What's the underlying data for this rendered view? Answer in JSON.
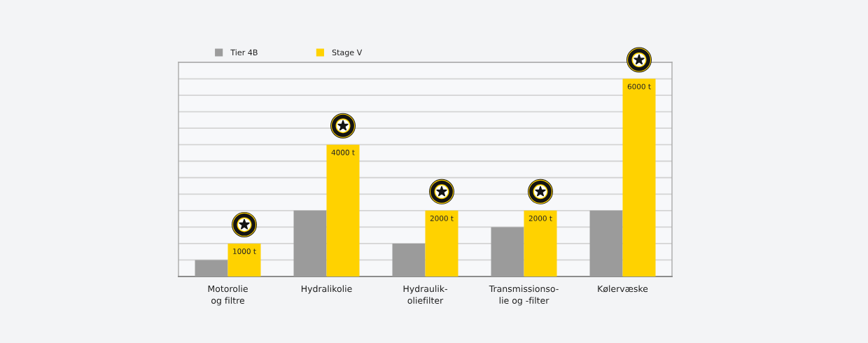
{
  "chart_data": {
    "type": "bar",
    "categories": [
      "Motorolie\nog filtre",
      "Hydralikolie",
      "Hydraulik-\noliefilter",
      "Transmissionso-\nlie og -filter",
      "Kølervæske"
    ],
    "series": [
      {
        "name": "Tier 4B",
        "color": "#9b9b9b",
        "values": [
          500,
          2000,
          1000,
          1500,
          2000
        ]
      },
      {
        "name": "Stage V",
        "color": "#ffd200",
        "values": [
          1000,
          4000,
          2000,
          2000,
          6000
        ],
        "value_labels": [
          "1000 t",
          "4000 t",
          "2000 t",
          "2000 t",
          "6000 t"
        ]
      }
    ],
    "ylim": [
      0,
      6500
    ],
    "yticks": [
      {
        "value": 500,
        "label": null
      },
      {
        "value": 1000,
        "label": null
      },
      {
        "value": 1500,
        "label": null
      },
      {
        "value": 2000,
        "label": null
      },
      {
        "value": 2500,
        "label": null
      },
      {
        "value": 3000,
        "label": null
      },
      {
        "value": 3500,
        "label": null
      },
      {
        "value": 4000,
        "label": null
      },
      {
        "value": 4500,
        "label": null
      },
      {
        "value": 5000,
        "label": null
      },
      {
        "value": 5500,
        "label": null
      },
      {
        "value": 6000,
        "label": null
      },
      {
        "value": 6500,
        "label": null
      }
    ],
    "grid": "y",
    "legend": "top left",
    "tick_labels": "x"
  }
}
